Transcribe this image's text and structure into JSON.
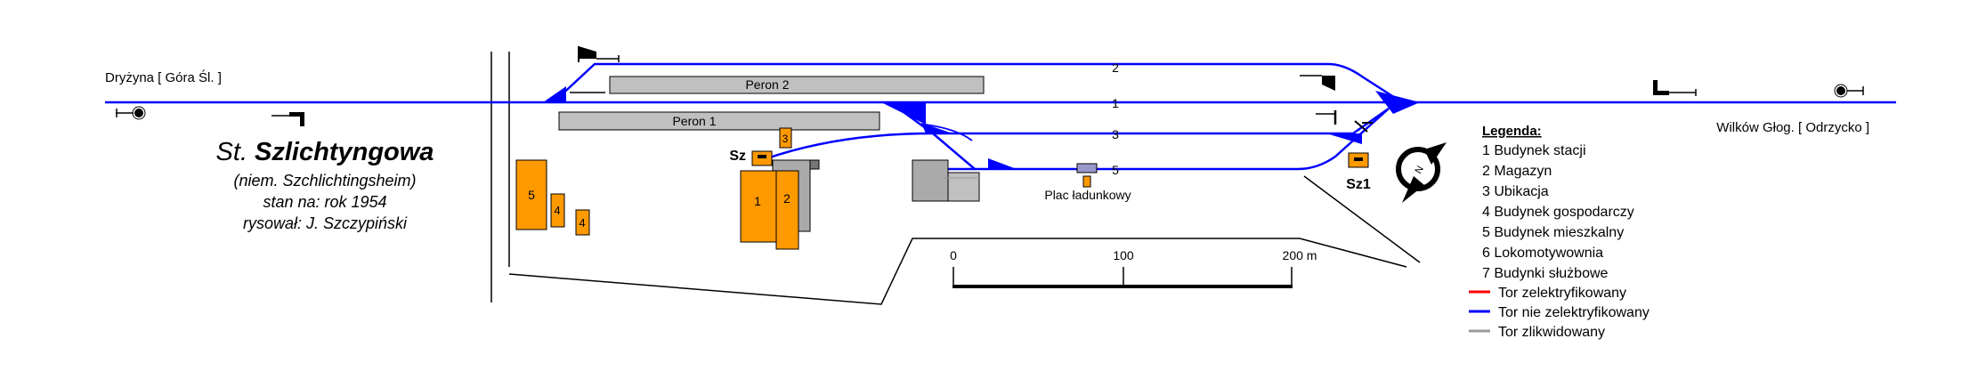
{
  "station": {
    "name_prefix": "St.",
    "name_main": "Szlichtyngowa",
    "german_name": "(niem. Szchlichtingsheim)",
    "state_note": "stan na: rok 1954",
    "author": "rysował: J. Szczypiński"
  },
  "directions": {
    "west": "Dryżyna [ Góra Śl. ]",
    "east": "Wilków Głog. [ Odrzycko ]"
  },
  "platforms": {
    "p1": "Peron 1",
    "p2": "Peron 2"
  },
  "tracks": {
    "t1": "1",
    "t2": "2",
    "t3": "3",
    "t5": "5"
  },
  "buildings": {
    "b1": "1",
    "b2": "2",
    "b3": "3",
    "b4a": "4",
    "b4b": "4",
    "b5": "5"
  },
  "signal_boxes": {
    "sz": "Sz",
    "sz1": "Sz1"
  },
  "loading_area": "Plac ładunkowy",
  "compass_label": "N",
  "scale": {
    "ticks": [
      "0",
      "100",
      "200 m"
    ]
  },
  "legend": {
    "title": "Legenda:",
    "items": [
      "1  Budynek stacji",
      "2  Magazyn",
      "3  Ubikacja",
      "4  Budynek gospodarczy",
      "5  Budynek mieszkalny",
      "6  Lokomotywownia",
      "7  Budynki służbowe"
    ],
    "lines": [
      {
        "label": "Tor zelektryfikowany",
        "color": "#ff0000"
      },
      {
        "label": "Tor nie zelektryfikowany",
        "color": "#0000ff"
      },
      {
        "label": "Tor zlikwidowany",
        "color": "#999999"
      }
    ]
  },
  "colors": {
    "track": "#0000ff",
    "building": "#ff9900",
    "platform": "#c0c0c0",
    "liquidated": "#999999"
  }
}
